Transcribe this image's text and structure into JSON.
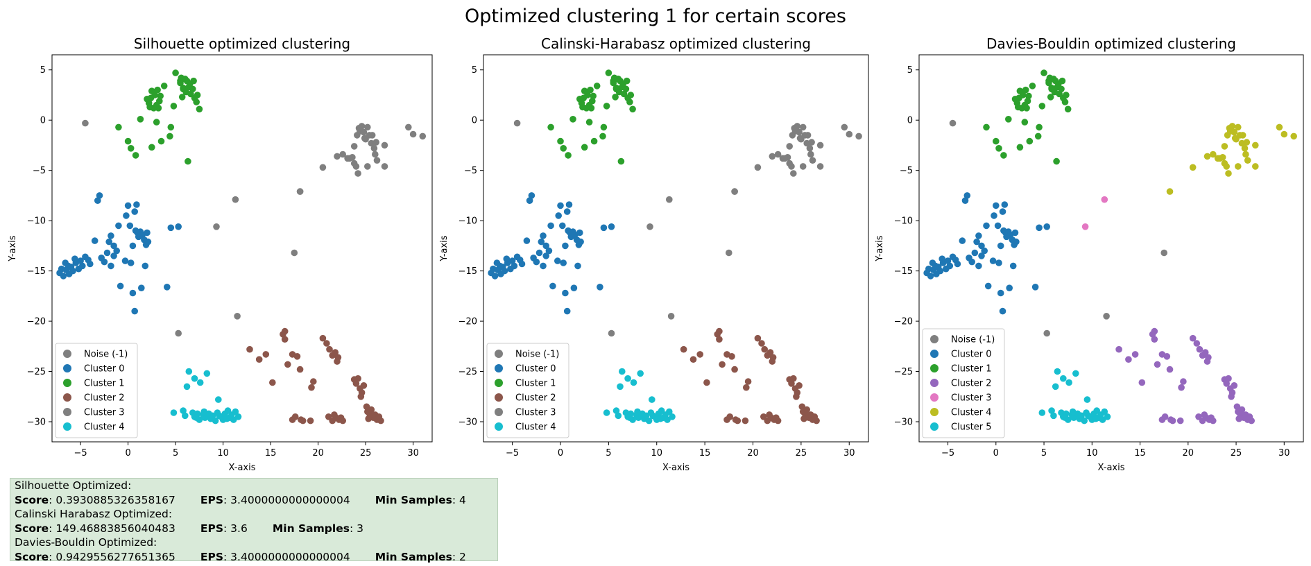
{
  "figure": {
    "suptitle": "Optimized clustering 1 for certain scores"
  },
  "info_box": {
    "bg_color": "#d9ead9",
    "rows": [
      {
        "header": "Silhouette Optimized:",
        "score_label": "Score",
        "score": "0.3930885326358167",
        "eps_label": "EPS",
        "eps": "3.4000000000000004",
        "min_label": "Min Samples",
        "min": "4"
      },
      {
        "header": "Calinski Harabasz Optimized:",
        "score_label": "Score",
        "score": "149.46883856040483",
        "eps_label": "EPS",
        "eps": "3.6",
        "min_label": "Min Samples",
        "min": "3"
      },
      {
        "header": "Davies-Bouldin Optimized:",
        "score_label": "Score",
        "score": "0.9429556277651365",
        "eps_label": "EPS",
        "eps": "3.4000000000000004",
        "min_label": "Min Samples",
        "min": "2"
      }
    ]
  },
  "chart_data": [
    {
      "type": "scatter",
      "title": "Silhouette optimized clustering",
      "xlabel": "X-axis",
      "ylabel": "Y-axis",
      "xlim": [
        -8,
        32
      ],
      "ylim": [
        -32,
        6.5
      ],
      "xticks": [
        -5,
        0,
        5,
        10,
        15,
        20,
        25,
        30
      ],
      "yticks": [
        5,
        0,
        -5,
        -10,
        -15,
        -20,
        -25,
        -30
      ],
      "grid": false,
      "legend_position": "lower-left",
      "legend": [
        {
          "label": "Noise (-1)",
          "color": "#7f7f7f"
        },
        {
          "label": "Cluster 0",
          "color": "#1f77b4"
        },
        {
          "label": "Cluster 1",
          "color": "#2ca02c"
        },
        {
          "label": "Cluster 2",
          "color": "#8c564b"
        },
        {
          "label": "Cluster 3",
          "color": "#7f7f7f"
        },
        {
          "label": "Cluster 4",
          "color": "#17becf"
        }
      ],
      "clusters": {
        "noise": "#7f7f7f",
        "blue": "#1f77b4",
        "green": "#2ca02c",
        "brown": "#8c564b",
        "gray": "#7f7f7f",
        "cyan": "#17becf",
        "pink": "#7f7f7f",
        "olive": "#7f7f7f"
      }
    },
    {
      "type": "scatter",
      "title": "Calinski-Harabasz optimized clustering",
      "xlabel": "X-axis",
      "ylabel": "Y-axis",
      "xlim": [
        -8,
        32
      ],
      "ylim": [
        -32,
        6.5
      ],
      "xticks": [
        -5,
        0,
        5,
        10,
        15,
        20,
        25,
        30
      ],
      "yticks": [
        5,
        0,
        -5,
        -10,
        -15,
        -20,
        -25,
        -30
      ],
      "grid": false,
      "legend_position": "lower-left",
      "legend": [
        {
          "label": "Noise (-1)",
          "color": "#7f7f7f"
        },
        {
          "label": "Cluster 0",
          "color": "#1f77b4"
        },
        {
          "label": "Cluster 1",
          "color": "#2ca02c"
        },
        {
          "label": "Cluster 2",
          "color": "#8c564b"
        },
        {
          "label": "Cluster 3",
          "color": "#7f7f7f"
        },
        {
          "label": "Cluster 4",
          "color": "#17becf"
        }
      ],
      "clusters": {
        "noise": "#7f7f7f",
        "blue": "#1f77b4",
        "green": "#2ca02c",
        "brown": "#8c564b",
        "gray": "#7f7f7f",
        "cyan": "#17becf",
        "pink": "#7f7f7f",
        "olive": "#7f7f7f"
      }
    },
    {
      "type": "scatter",
      "title": "Davies-Bouldin optimized clustering",
      "xlabel": "X-axis",
      "ylabel": "Y-axis",
      "xlim": [
        -8,
        32
      ],
      "ylim": [
        -32,
        6.5
      ],
      "xticks": [
        -5,
        0,
        5,
        10,
        15,
        20,
        25,
        30
      ],
      "yticks": [
        5,
        0,
        -5,
        -10,
        -15,
        -20,
        -25,
        -30
      ],
      "grid": false,
      "legend_position": "lower-left",
      "legend": [
        {
          "label": "Noise (-1)",
          "color": "#7f7f7f"
        },
        {
          "label": "Cluster 0",
          "color": "#1f77b4"
        },
        {
          "label": "Cluster 1",
          "color": "#2ca02c"
        },
        {
          "label": "Cluster 2",
          "color": "#9467bd"
        },
        {
          "label": "Cluster 3",
          "color": "#e377c2"
        },
        {
          "label": "Cluster 4",
          "color": "#bcbd22"
        },
        {
          "label": "Cluster 5",
          "color": "#17becf"
        }
      ],
      "clusters": {
        "noise": "#7f7f7f",
        "blue": "#1f77b4",
        "green": "#2ca02c",
        "brown": "#9467bd",
        "gray": "#bcbd22",
        "cyan": "#17becf",
        "pink": "#e377c2",
        "olive": "#bcbd22"
      }
    }
  ],
  "points": {
    "blue": [
      [
        -7.2,
        -15.2
      ],
      [
        -7,
        -14.8
      ],
      [
        -6.8,
        -15.5
      ],
      [
        -6.5,
        -14.9
      ],
      [
        -6.2,
        -15.3
      ],
      [
        -6,
        -14.6
      ],
      [
        -5.8,
        -15
      ],
      [
        -5.5,
        -14.2
      ],
      [
        -5.2,
        -14.8
      ],
      [
        -5,
        -14
      ],
      [
        -4.8,
        -14.5
      ],
      [
        -4.5,
        -13.6
      ],
      [
        -4.2,
        -13.9
      ],
      [
        -4,
        -14.3
      ],
      [
        -6.6,
        -14.2
      ],
      [
        -6.3,
        -14.5
      ],
      [
        -5.6,
        -13.8
      ],
      [
        -3.5,
        -12
      ],
      [
        -3.2,
        -8
      ],
      [
        -3,
        -7.5
      ],
      [
        -2.8,
        -13.7
      ],
      [
        -2.5,
        -14.1
      ],
      [
        -2.2,
        -13.2
      ],
      [
        -2,
        -12.1
      ],
      [
        -1.8,
        -14.5
      ],
      [
        -1.5,
        -13.5
      ],
      [
        -1.8,
        -11.5
      ],
      [
        -1.5,
        -12.5
      ],
      [
        -1.2,
        -13
      ],
      [
        -1,
        -10.5
      ],
      [
        -0.8,
        -16.5
      ],
      [
        -0.3,
        -14
      ],
      [
        0,
        -8.5
      ],
      [
        -0.2,
        -9.5
      ],
      [
        0.2,
        -10.5
      ],
      [
        0.5,
        -17.2
      ],
      [
        0.3,
        -14.2
      ],
      [
        0.5,
        -12.5
      ],
      [
        0.8,
        -11
      ],
      [
        1,
        -11.2
      ],
      [
        0.7,
        -9.1
      ],
      [
        0.9,
        -8.4
      ],
      [
        1.1,
        -11.6
      ],
      [
        1.3,
        -11.1
      ],
      [
        1.5,
        -11.4
      ],
      [
        1.7,
        -11.9
      ],
      [
        1.9,
        -12.4
      ],
      [
        2,
        -11.2
      ],
      [
        1.4,
        -16.7
      ],
      [
        1.8,
        -14.5
      ],
      [
        2.1,
        -12.1
      ],
      [
        4.1,
        -16.6
      ],
      [
        4.5,
        -10.7
      ],
      [
        5.3,
        -10.6
      ],
      [
        0.7,
        -19
      ]
    ],
    "green": [
      [
        -1,
        -0.7
      ],
      [
        0,
        -2.1
      ],
      [
        0.3,
        -2.8
      ],
      [
        0.8,
        -3.5
      ],
      [
        1.3,
        0.1
      ],
      [
        2.2,
        1.7
      ],
      [
        2.5,
        2.9
      ],
      [
        2.4,
        2.2
      ],
      [
        2.7,
        1.2
      ],
      [
        3,
        1.5
      ],
      [
        3.2,
        1.2
      ],
      [
        3.4,
        2.4
      ],
      [
        3.1,
        3
      ],
      [
        3,
        -0.2
      ],
      [
        2.5,
        -2.7
      ],
      [
        3.8,
        3.4
      ],
      [
        3.5,
        -2.1
      ],
      [
        4.5,
        -0.7
      ],
      [
        4.4,
        -1.6
      ],
      [
        4.8,
        1.4
      ],
      [
        5,
        4.7
      ],
      [
        5.5,
        3.9
      ],
      [
        5.5,
        3.7
      ],
      [
        5.8,
        3.2
      ],
      [
        6,
        4.1
      ],
      [
        6.2,
        3.9
      ],
      [
        6.5,
        3.6
      ],
      [
        6.8,
        3.1
      ],
      [
        6.6,
        2.6
      ],
      [
        7,
        2.2
      ],
      [
        7.2,
        1.8
      ],
      [
        7.5,
        1.1
      ],
      [
        6.3,
        -4.1
      ],
      [
        5.8,
        3.1
      ],
      [
        6.1,
        2.8
      ],
      [
        5.6,
        4.2
      ],
      [
        2.8,
        2.5
      ],
      [
        3.3,
        1.9
      ],
      [
        6.9,
        3.9
      ],
      [
        5.7,
        2.3
      ],
      [
        7.3,
        2.5
      ],
      [
        2,
        2.1
      ],
      [
        2.3,
        1.3
      ],
      [
        6.4,
        3.3
      ]
    ],
    "gray": [
      [
        22,
        -3.6
      ],
      [
        22.6,
        -3.4
      ],
      [
        23.1,
        -3.8
      ],
      [
        23.6,
        -3.7
      ],
      [
        23.8,
        -2.6
      ],
      [
        23.8,
        -4.3
      ],
      [
        24,
        -4.6
      ],
      [
        24.2,
        -5.3
      ],
      [
        24.1,
        -1.5
      ],
      [
        24.3,
        -0.8
      ],
      [
        24.6,
        -0.6
      ],
      [
        24.8,
        -1.2
      ],
      [
        25,
        -1.9
      ],
      [
        25.2,
        -0.7
      ],
      [
        25.2,
        -4.6
      ],
      [
        25.6,
        -2.3
      ],
      [
        25.7,
        -1.5
      ],
      [
        25.9,
        -2.8
      ],
      [
        26,
        -3.4
      ],
      [
        26.2,
        -4
      ],
      [
        26.1,
        -2.2
      ],
      [
        27,
        -2.5
      ],
      [
        27,
        -4.6
      ],
      [
        29.5,
        -0.7
      ],
      [
        30,
        -1.4
      ],
      [
        31,
        -1.6
      ],
      [
        24.4,
        -1.1
      ],
      [
        25.4,
        -1.5
      ],
      [
        24.9,
        -1.8
      ],
      [
        20.5,
        -4.7
      ],
      [
        23.3,
        -3.8
      ]
    ],
    "olive": [
      [
        18.1,
        -7.1
      ]
    ],
    "brown": [
      [
        12.8,
        -22.8
      ],
      [
        13.8,
        -23.8
      ],
      [
        14.5,
        -23.3
      ],
      [
        16.3,
        -21.3
      ],
      [
        16.5,
        -21.8
      ],
      [
        16.5,
        -21
      ],
      [
        17.3,
        -23.3
      ],
      [
        17.8,
        -23.5
      ],
      [
        16.8,
        -24.3
      ],
      [
        18.1,
        -24.8
      ],
      [
        19.3,
        -26.6
      ],
      [
        19.5,
        -26
      ],
      [
        17.3,
        -29.8
      ],
      [
        17.6,
        -29.5
      ],
      [
        18.2,
        -29.8
      ],
      [
        18.4,
        -29.9
      ],
      [
        19.2,
        -29.9
      ],
      [
        20.5,
        -21.7
      ],
      [
        20.9,
        -22.2
      ],
      [
        21.2,
        -22.8
      ],
      [
        21.5,
        -23.4
      ],
      [
        21.8,
        -23.1
      ],
      [
        22.1,
        -23.6
      ],
      [
        22,
        -24
      ],
      [
        21.7,
        -29.3
      ],
      [
        21.9,
        -29.6
      ],
      [
        22.2,
        -29.8
      ],
      [
        21.5,
        -29.9
      ],
      [
        22.4,
        -29.6
      ],
      [
        22.6,
        -29.9
      ],
      [
        23.8,
        -25.8
      ],
      [
        24,
        -26.2
      ],
      [
        24.2,
        -25.7
      ],
      [
        24.4,
        -26.7
      ],
      [
        24.6,
        -27.1
      ],
      [
        24.8,
        -26.4
      ],
      [
        24.5,
        -27.5
      ],
      [
        25.1,
        -28.5
      ],
      [
        25.2,
        -29
      ],
      [
        25.4,
        -29.2
      ],
      [
        25.6,
        -28.8
      ],
      [
        25.8,
        -29.6
      ],
      [
        26,
        -29.3
      ],
      [
        26.2,
        -29.8
      ],
      [
        26.4,
        -29.5
      ],
      [
        26.6,
        -29.9
      ],
      [
        25.3,
        -29.7
      ],
      [
        21.1,
        -29.5
      ],
      [
        15.2,
        -26.1
      ]
    ],
    "cyan": [
      [
        4.8,
        -29.1
      ],
      [
        5.8,
        -28.9
      ],
      [
        6,
        -29.4
      ],
      [
        6.2,
        -26.5
      ],
      [
        6.4,
        -25
      ],
      [
        6.8,
        -29.1
      ],
      [
        7,
        -25.7
      ],
      [
        7,
        -29.5
      ],
      [
        7.3,
        -29.2
      ],
      [
        7.5,
        -29.8
      ],
      [
        7.6,
        -26.1
      ],
      [
        7.9,
        -29.3
      ],
      [
        8.1,
        -29.6
      ],
      [
        8.3,
        -25.2
      ],
      [
        8.5,
        -29.2
      ],
      [
        8.7,
        -29.7
      ],
      [
        8.9,
        -29.4
      ],
      [
        9.2,
        -29.9
      ],
      [
        9.5,
        -27.8
      ],
      [
        9.6,
        -29.4
      ],
      [
        9.8,
        -29.5
      ],
      [
        10,
        -29.8
      ],
      [
        10.2,
        -29.2
      ],
      [
        10.5,
        -28.9
      ],
      [
        10.7,
        -29.6
      ],
      [
        10.9,
        -29.3
      ],
      [
        11.1,
        -29.8
      ],
      [
        11.3,
        -29
      ],
      [
        11.6,
        -29.5
      ],
      [
        9.4,
        -29.1
      ],
      [
        8,
        -29
      ],
      [
        7.2,
        -29.6
      ],
      [
        10.4,
        -29.7
      ]
    ],
    "noise_all": [
      [
        -4.5,
        -0.3
      ],
      [
        11.5,
        -19.5
      ],
      [
        5.3,
        -21.2
      ]
    ],
    "noise_s1": [
      [
        17.5,
        -13.2
      ],
      [
        9.3,
        -10.6
      ],
      [
        11.3,
        -7.9
      ],
      [
        18.1,
        -7.1
      ]
    ],
    "noise_s3": [
      [
        17.5,
        -13.2
      ]
    ]
  }
}
